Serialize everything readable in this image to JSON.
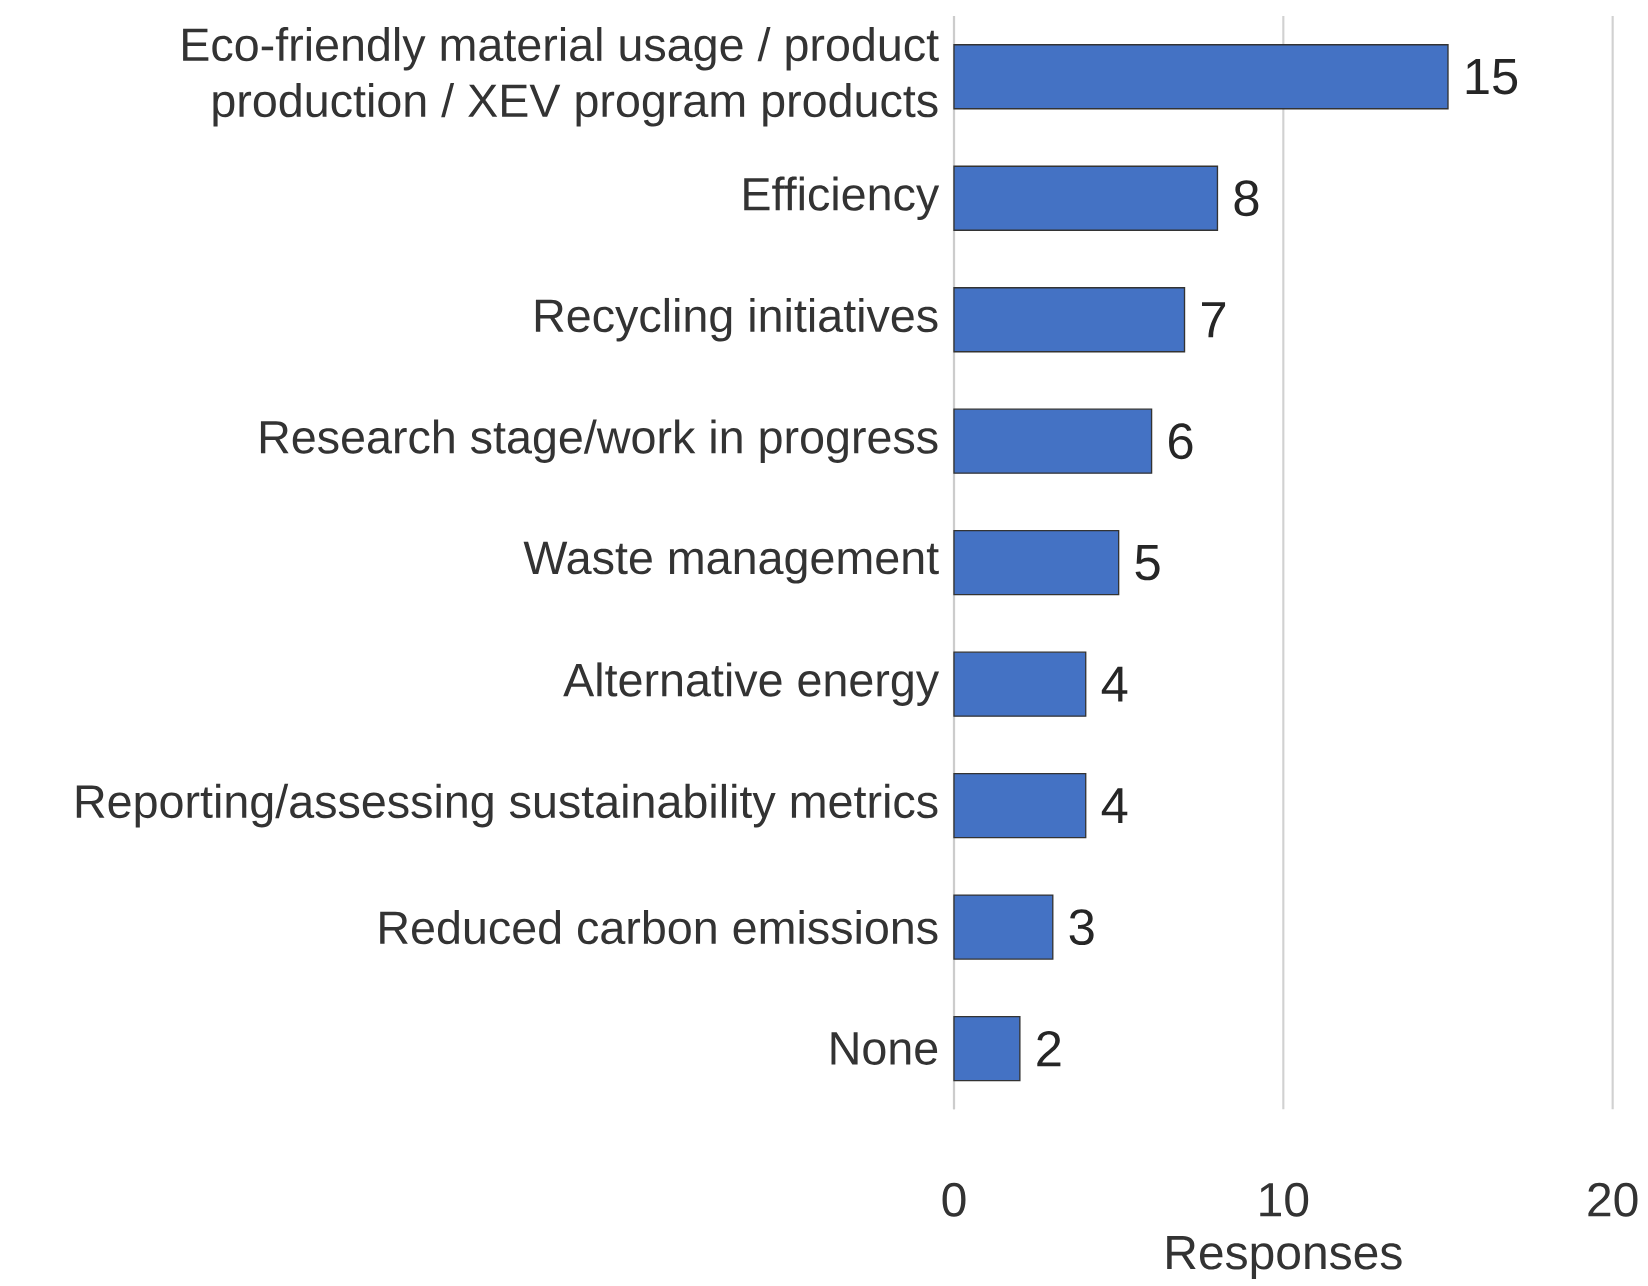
{
  "chart_data": {
    "type": "bar",
    "orientation": "horizontal",
    "categories": [
      "Eco-friendly material usage / product production / XEV program products",
      "Efficiency",
      "Recycling initiatives",
      "Research stage/work in progress",
      "Waste management",
      "Alternative energy",
      "Reporting/assessing sustainability metrics",
      "Reduced carbon emissions",
      "None"
    ],
    "values": [
      15,
      8,
      7,
      6,
      5,
      4,
      4,
      3,
      2
    ],
    "color": "#4472c4",
    "xlabel": "Responses",
    "xlim": [
      0,
      20
    ],
    "xticks": [
      0,
      10,
      20
    ],
    "grid": "x",
    "data_labels": true
  }
}
